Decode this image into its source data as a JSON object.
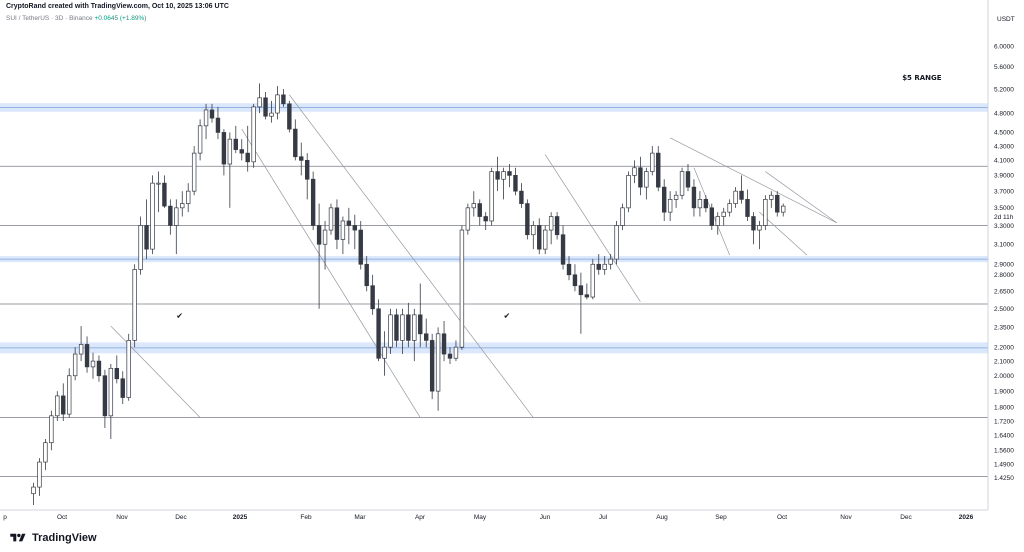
{
  "header": {
    "attribution": "CryptoRand created with TradingView.com, Oct 10, 2025 13:06 UTC",
    "symbol_line": "SUI / TetherUS · 3D · Binance",
    "change": "+0.0645 (+1.89%)"
  },
  "brand": {
    "name": "TradingView"
  },
  "chart_data": {
    "type": "candlestick",
    "price_scale_label": "USDT",
    "y_scale": "log",
    "ylim": [
      1.3,
      6.7
    ],
    "y_ticks": [
      "6.0000",
      "5.6000",
      "5.2000",
      "4.8000",
      "4.5000",
      "4.3000",
      "4.1000",
      "3.9000",
      "3.7000",
      "3.5000",
      "3.3000",
      "3.1000",
      "2.9000",
      "2.8000",
      "2.6500",
      "2.5000",
      "2.3500",
      "2.2000",
      "2.1000",
      "2.0000",
      "1.9000",
      "1.8000",
      "1.7200",
      "1.6400",
      "1.5600",
      "1.4900",
      "1.4250"
    ],
    "countdown_label": "2d 11h",
    "x_labels": [
      "p",
      "Oct",
      "Nov",
      "Dec",
      "2025",
      "Feb",
      "Mar",
      "Apr",
      "May",
      "Jun",
      "Jul",
      "Aug",
      "Sep",
      "Oct",
      "Nov",
      "Dec",
      "2026"
    ],
    "annotations": [
      {
        "text": "$5 RANGE",
        "price": 5.36,
        "bar": 146
      },
      {
        "text": "✔",
        "price": 2.42,
        "bar": 24
      },
      {
        "text": "✔",
        "price": 2.42,
        "bar": 79
      }
    ],
    "zones": [
      {
        "low": 4.82,
        "high": 4.96
      },
      {
        "low": 2.92,
        "high": 2.98
      },
      {
        "low": 2.155,
        "high": 2.235
      }
    ],
    "levels": [
      4.02,
      3.3,
      2.54,
      1.74,
      1.43
    ],
    "trendlines": [
      {
        "from": [
          13,
          2.36
        ],
        "to": [
          28,
          1.74
        ]
      },
      {
        "from": [
          35,
          4.55
        ],
        "to": [
          65,
          1.74
        ]
      },
      {
        "from": [
          43,
          5.1
        ],
        "to": [
          84,
          1.74
        ]
      },
      {
        "from": [
          86,
          4.18
        ],
        "to": [
          102,
          2.56
        ]
      },
      {
        "from": [
          107,
          4.42
        ],
        "to": [
          135,
          3.33
        ]
      },
      {
        "from": [
          111,
          4.0
        ],
        "to": [
          117,
          2.99
        ]
      },
      {
        "from": [
          123,
          3.95
        ],
        "to": [
          135,
          3.33
        ]
      },
      {
        "from": [
          122,
          3.45
        ],
        "to": [
          130,
          2.99
        ]
      }
    ],
    "candles": [
      {
        "o": 1.35,
        "h": 1.4,
        "l": 1.3,
        "c": 1.38
      },
      {
        "o": 1.38,
        "h": 1.52,
        "l": 1.34,
        "c": 1.5
      },
      {
        "o": 1.5,
        "h": 1.62,
        "l": 1.46,
        "c": 1.6
      },
      {
        "o": 1.6,
        "h": 1.78,
        "l": 1.56,
        "c": 1.75
      },
      {
        "o": 1.75,
        "h": 1.9,
        "l": 1.72,
        "c": 1.87
      },
      {
        "o": 1.87,
        "h": 1.95,
        "l": 1.72,
        "c": 1.76
      },
      {
        "o": 1.76,
        "h": 2.05,
        "l": 1.74,
        "c": 2.0
      },
      {
        "o": 2.0,
        "h": 2.2,
        "l": 1.97,
        "c": 2.15
      },
      {
        "o": 2.15,
        "h": 2.36,
        "l": 2.1,
        "c": 2.22
      },
      {
        "o": 2.22,
        "h": 2.28,
        "l": 2.02,
        "c": 2.06
      },
      {
        "o": 2.06,
        "h": 2.16,
        "l": 1.98,
        "c": 2.1
      },
      {
        "o": 2.1,
        "h": 2.14,
        "l": 1.96,
        "c": 2.0
      },
      {
        "o": 2.0,
        "h": 2.04,
        "l": 1.68,
        "c": 1.75
      },
      {
        "o": 1.75,
        "h": 2.08,
        "l": 1.62,
        "c": 2.05
      },
      {
        "o": 2.05,
        "h": 2.14,
        "l": 1.95,
        "c": 1.98
      },
      {
        "o": 1.98,
        "h": 2.03,
        "l": 1.82,
        "c": 1.86
      },
      {
        "o": 1.86,
        "h": 2.3,
        "l": 1.84,
        "c": 2.25
      },
      {
        "o": 2.25,
        "h": 2.9,
        "l": 2.2,
        "c": 2.85
      },
      {
        "o": 2.85,
        "h": 3.4,
        "l": 2.8,
        "c": 3.3
      },
      {
        "o": 3.3,
        "h": 3.6,
        "l": 2.95,
        "c": 3.05
      },
      {
        "o": 3.05,
        "h": 3.9,
        "l": 3.0,
        "c": 3.8
      },
      {
        "o": 3.8,
        "h": 3.95,
        "l": 3.45,
        "c": 3.8
      },
      {
        "o": 3.8,
        "h": 3.9,
        "l": 3.5,
        "c": 3.52
      },
      {
        "o": 3.52,
        "h": 3.6,
        "l": 3.2,
        "c": 3.3
      },
      {
        "o": 3.3,
        "h": 3.6,
        "l": 3.0,
        "c": 3.5
      },
      {
        "o": 3.5,
        "h": 3.7,
        "l": 3.4,
        "c": 3.55
      },
      {
        "o": 3.55,
        "h": 3.8,
        "l": 3.45,
        "c": 3.7
      },
      {
        "o": 3.7,
        "h": 4.3,
        "l": 3.65,
        "c": 4.2
      },
      {
        "o": 4.2,
        "h": 4.7,
        "l": 4.1,
        "c": 4.6
      },
      {
        "o": 4.6,
        "h": 4.95,
        "l": 4.4,
        "c": 4.85
      },
      {
        "o": 4.85,
        "h": 4.95,
        "l": 4.65,
        "c": 4.72
      },
      {
        "o": 4.72,
        "h": 4.9,
        "l": 4.4,
        "c": 4.5
      },
      {
        "o": 4.5,
        "h": 4.55,
        "l": 3.9,
        "c": 4.05
      },
      {
        "o": 4.05,
        "h": 4.5,
        "l": 3.5,
        "c": 4.4
      },
      {
        "o": 4.4,
        "h": 4.6,
        "l": 4.2,
        "c": 4.25
      },
      {
        "o": 4.25,
        "h": 4.4,
        "l": 4.1,
        "c": 4.2
      },
      {
        "o": 4.2,
        "h": 4.6,
        "l": 3.95,
        "c": 4.08
      },
      {
        "o": 4.08,
        "h": 4.95,
        "l": 4.0,
        "c": 4.9
      },
      {
        "o": 4.9,
        "h": 5.3,
        "l": 4.8,
        "c": 5.05
      },
      {
        "o": 5.05,
        "h": 5.15,
        "l": 4.7,
        "c": 4.75
      },
      {
        "o": 4.75,
        "h": 5.0,
        "l": 4.65,
        "c": 4.8
      },
      {
        "o": 4.8,
        "h": 5.25,
        "l": 4.7,
        "c": 5.1
      },
      {
        "o": 5.1,
        "h": 5.2,
        "l": 4.9,
        "c": 4.95
      },
      {
        "o": 4.95,
        "h": 5.0,
        "l": 4.5,
        "c": 4.55
      },
      {
        "o": 4.55,
        "h": 4.7,
        "l": 4.1,
        "c": 4.15
      },
      {
        "o": 4.15,
        "h": 4.35,
        "l": 3.9,
        "c": 4.1
      },
      {
        "o": 4.1,
        "h": 4.2,
        "l": 3.6,
        "c": 3.85
      },
      {
        "o": 3.85,
        "h": 3.95,
        "l": 3.25,
        "c": 3.3
      },
      {
        "o": 3.3,
        "h": 3.55,
        "l": 2.5,
        "c": 3.1
      },
      {
        "o": 3.1,
        "h": 3.35,
        "l": 2.85,
        "c": 3.25
      },
      {
        "o": 3.25,
        "h": 3.55,
        "l": 3.2,
        "c": 3.5
      },
      {
        "o": 3.5,
        "h": 3.6,
        "l": 3.05,
        "c": 3.15
      },
      {
        "o": 3.15,
        "h": 3.4,
        "l": 3.0,
        "c": 3.35
      },
      {
        "o": 3.35,
        "h": 3.5,
        "l": 3.1,
        "c": 3.3
      },
      {
        "o": 3.3,
        "h": 3.42,
        "l": 3.05,
        "c": 3.25
      },
      {
        "o": 3.25,
        "h": 3.35,
        "l": 2.85,
        "c": 2.9
      },
      {
        "o": 2.9,
        "h": 2.98,
        "l": 2.65,
        "c": 2.7
      },
      {
        "o": 2.7,
        "h": 2.8,
        "l": 2.45,
        "c": 2.5
      },
      {
        "o": 2.5,
        "h": 2.58,
        "l": 2.1,
        "c": 2.12
      },
      {
        "o": 2.12,
        "h": 2.32,
        "l": 2.0,
        "c": 2.2
      },
      {
        "o": 2.2,
        "h": 2.5,
        "l": 2.15,
        "c": 2.45
      },
      {
        "o": 2.45,
        "h": 2.5,
        "l": 2.2,
        "c": 2.25
      },
      {
        "o": 2.25,
        "h": 2.5,
        "l": 2.15,
        "c": 2.45
      },
      {
        "o": 2.45,
        "h": 2.55,
        "l": 2.2,
        "c": 2.25
      },
      {
        "o": 2.25,
        "h": 2.5,
        "l": 2.1,
        "c": 2.45
      },
      {
        "o": 2.45,
        "h": 2.72,
        "l": 2.2,
        "c": 2.3
      },
      {
        "o": 2.3,
        "h": 2.42,
        "l": 2.2,
        "c": 2.25
      },
      {
        "o": 2.25,
        "h": 2.3,
        "l": 1.85,
        "c": 1.9
      },
      {
        "o": 1.9,
        "h": 2.35,
        "l": 1.78,
        "c": 2.3
      },
      {
        "o": 2.3,
        "h": 2.4,
        "l": 2.1,
        "c": 2.15
      },
      {
        "o": 2.15,
        "h": 2.2,
        "l": 2.08,
        "c": 2.12
      },
      {
        "o": 2.12,
        "h": 2.25,
        "l": 2.1,
        "c": 2.2
      },
      {
        "o": 2.2,
        "h": 3.3,
        "l": 2.18,
        "c": 3.25
      },
      {
        "o": 3.25,
        "h": 3.55,
        "l": 3.2,
        "c": 3.5
      },
      {
        "o": 3.5,
        "h": 3.7,
        "l": 3.4,
        "c": 3.55
      },
      {
        "o": 3.55,
        "h": 3.6,
        "l": 3.3,
        "c": 3.4
      },
      {
        "o": 3.4,
        "h": 3.45,
        "l": 3.25,
        "c": 3.35
      },
      {
        "o": 3.35,
        "h": 4.0,
        "l": 3.3,
        "c": 3.95
      },
      {
        "o": 3.95,
        "h": 4.15,
        "l": 3.7,
        "c": 3.85
      },
      {
        "o": 3.85,
        "h": 4.0,
        "l": 3.6,
        "c": 3.95
      },
      {
        "o": 3.95,
        "h": 4.05,
        "l": 3.75,
        "c": 3.9
      },
      {
        "o": 3.9,
        "h": 4.0,
        "l": 3.65,
        "c": 3.7
      },
      {
        "o": 3.7,
        "h": 3.8,
        "l": 3.5,
        "c": 3.55
      },
      {
        "o": 3.55,
        "h": 3.6,
        "l": 3.15,
        "c": 3.2
      },
      {
        "o": 3.2,
        "h": 3.35,
        "l": 3.05,
        "c": 3.3
      },
      {
        "o": 3.3,
        "h": 3.38,
        "l": 3.0,
        "c": 3.05
      },
      {
        "o": 3.05,
        "h": 3.3,
        "l": 3.0,
        "c": 3.25
      },
      {
        "o": 3.25,
        "h": 3.45,
        "l": 3.1,
        "c": 3.4
      },
      {
        "o": 3.4,
        "h": 3.45,
        "l": 3.15,
        "c": 3.2
      },
      {
        "o": 3.2,
        "h": 3.3,
        "l": 2.85,
        "c": 2.9
      },
      {
        "o": 2.9,
        "h": 2.98,
        "l": 2.75,
        "c": 2.8
      },
      {
        "o": 2.8,
        "h": 2.9,
        "l": 2.65,
        "c": 2.7
      },
      {
        "o": 2.7,
        "h": 2.82,
        "l": 2.3,
        "c": 2.62
      },
      {
        "o": 2.62,
        "h": 2.72,
        "l": 2.58,
        "c": 2.6
      },
      {
        "o": 2.6,
        "h": 2.95,
        "l": 2.58,
        "c": 2.9
      },
      {
        "o": 2.9,
        "h": 3.0,
        "l": 2.8,
        "c": 2.85
      },
      {
        "o": 2.85,
        "h": 2.98,
        "l": 2.8,
        "c": 2.9
      },
      {
        "o": 2.9,
        "h": 3.0,
        "l": 2.85,
        "c": 2.95
      },
      {
        "o": 2.95,
        "h": 3.35,
        "l": 2.9,
        "c": 3.3
      },
      {
        "o": 3.3,
        "h": 3.55,
        "l": 3.25,
        "c": 3.5
      },
      {
        "o": 3.5,
        "h": 3.95,
        "l": 3.45,
        "c": 3.9
      },
      {
        "o": 3.9,
        "h": 4.1,
        "l": 3.8,
        "c": 4.0
      },
      {
        "o": 4.0,
        "h": 4.15,
        "l": 3.65,
        "c": 3.75
      },
      {
        "o": 3.75,
        "h": 4.0,
        "l": 3.6,
        "c": 3.95
      },
      {
        "o": 3.95,
        "h": 4.3,
        "l": 3.9,
        "c": 4.2
      },
      {
        "o": 4.2,
        "h": 4.3,
        "l": 3.7,
        "c": 3.75
      },
      {
        "o": 3.75,
        "h": 3.85,
        "l": 3.35,
        "c": 3.45
      },
      {
        "o": 3.45,
        "h": 3.7,
        "l": 3.35,
        "c": 3.6
      },
      {
        "o": 3.6,
        "h": 3.7,
        "l": 3.5,
        "c": 3.65
      },
      {
        "o": 3.65,
        "h": 4.0,
        "l": 3.6,
        "c": 3.95
      },
      {
        "o": 3.95,
        "h": 4.05,
        "l": 3.7,
        "c": 3.75
      },
      {
        "o": 3.75,
        "h": 3.85,
        "l": 3.4,
        "c": 3.5
      },
      {
        "o": 3.5,
        "h": 3.7,
        "l": 3.4,
        "c": 3.6
      },
      {
        "o": 3.6,
        "h": 3.65,
        "l": 3.45,
        "c": 3.5
      },
      {
        "o": 3.5,
        "h": 3.55,
        "l": 3.25,
        "c": 3.3
      },
      {
        "o": 3.3,
        "h": 3.45,
        "l": 3.2,
        "c": 3.4
      },
      {
        "o": 3.4,
        "h": 3.5,
        "l": 3.3,
        "c": 3.45
      },
      {
        "o": 3.45,
        "h": 3.6,
        "l": 3.4,
        "c": 3.55
      },
      {
        "o": 3.55,
        "h": 3.75,
        "l": 3.5,
        "c": 3.7
      },
      {
        "o": 3.7,
        "h": 3.9,
        "l": 3.55,
        "c": 3.6
      },
      {
        "o": 3.6,
        "h": 3.72,
        "l": 3.35,
        "c": 3.4
      },
      {
        "o": 3.4,
        "h": 3.45,
        "l": 3.1,
        "c": 3.25
      },
      {
        "o": 3.25,
        "h": 3.35,
        "l": 3.05,
        "c": 3.3
      },
      {
        "o": 3.3,
        "h": 3.65,
        "l": 3.25,
        "c": 3.6
      },
      {
        "o": 3.6,
        "h": 3.7,
        "l": 3.5,
        "c": 3.65
      },
      {
        "o": 3.65,
        "h": 3.7,
        "l": 3.4,
        "c": 3.45
      },
      {
        "o": 3.45,
        "h": 3.55,
        "l": 3.4,
        "c": 3.52
      }
    ]
  }
}
